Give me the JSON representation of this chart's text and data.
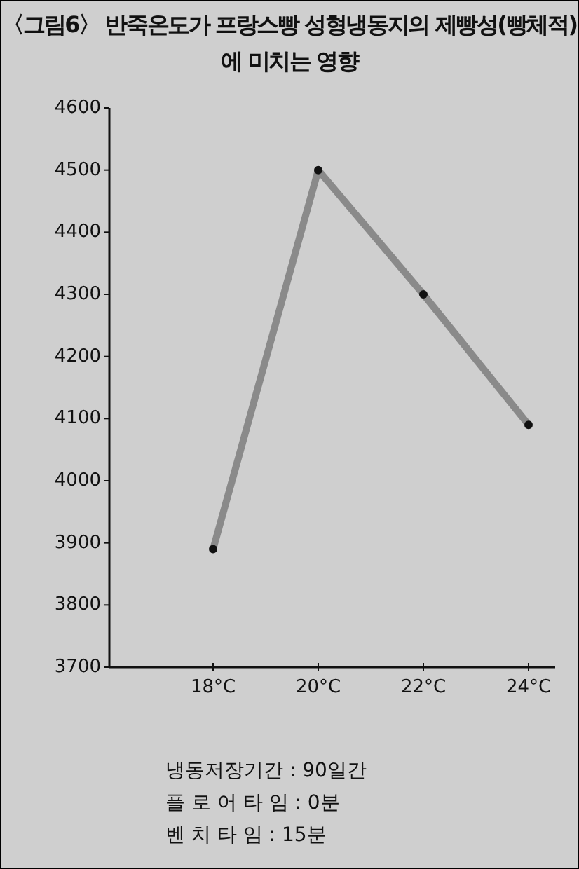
{
  "chart_data": {
    "type": "line",
    "title": "〈그림6〉 반죽온도가 프랑스빵 성형냉동지의 제빵성(빵체적)에 미치는 영향",
    "categories": [
      "18°C",
      "20°C",
      "22°C",
      "24°C"
    ],
    "series": [
      {
        "color": "#8a8a8a",
        "values": [
          3890,
          4500,
          4300,
          4090
        ]
      }
    ],
    "ylim": [
      3700,
      4600
    ],
    "yticks": [
      3700,
      3800,
      3900,
      4000,
      4100,
      4200,
      4300,
      4400,
      4500,
      4600
    ],
    "marker": "circle",
    "grid": false,
    "annotations": [
      "냉동저장기간 : 90일간",
      "플 로 어 타 임 : 0분",
      "벤 치 타 임 : 15분"
    ]
  }
}
